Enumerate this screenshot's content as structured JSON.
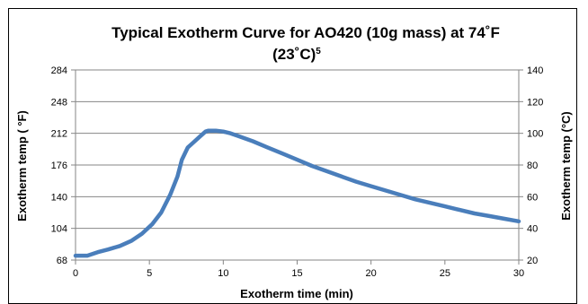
{
  "chart_data": {
    "type": "line",
    "title": "Typical Exotherm Curve for AO420 (10g mass) at 74˚F",
    "title_line2": "(23˚C)",
    "title_superscript": "5",
    "xlabel": "Exotherm time (min)",
    "ylabel": "Exotherm temp ( °F)",
    "ylabel_right": "Exotherm temp (°C)",
    "xlim": [
      0,
      30
    ],
    "ylim": [
      68,
      284
    ],
    "ylim_right": [
      20,
      140
    ],
    "x_ticks": [
      "0",
      "5",
      "10",
      "15",
      "20",
      "25",
      "30"
    ],
    "y_ticks": [
      "68",
      "104",
      "140",
      "176",
      "212",
      "248",
      "284"
    ],
    "y_ticks_right": [
      "20",
      "40",
      "60",
      "80",
      "100",
      "120",
      "140"
    ],
    "grid": true,
    "legend": "none",
    "line_color": "#4a7ebb",
    "series": [
      {
        "x": [
          0,
          0.8,
          1.5,
          2.2,
          3,
          3.8,
          4.5,
          5.2,
          5.8,
          6.4,
          6.9,
          7.2,
          7.6,
          8.0,
          8.4,
          8.8,
          9.0,
          9.5,
          10.0,
          10.5,
          11,
          12,
          13,
          14,
          15,
          16,
          17,
          18,
          19,
          20,
          21,
          22,
          23,
          24,
          25,
          26,
          27,
          28,
          29,
          30
        ],
        "y": [
          73,
          73,
          77,
          80,
          84,
          90,
          98,
          109,
          122,
          142,
          163,
          182,
          196,
          202,
          208,
          214,
          215,
          215,
          214,
          212,
          209,
          203,
          196,
          189,
          182,
          175,
          169,
          163,
          157,
          152,
          147,
          142,
          137,
          133,
          129,
          125,
          121,
          118,
          115,
          112
        ]
      }
    ]
  }
}
